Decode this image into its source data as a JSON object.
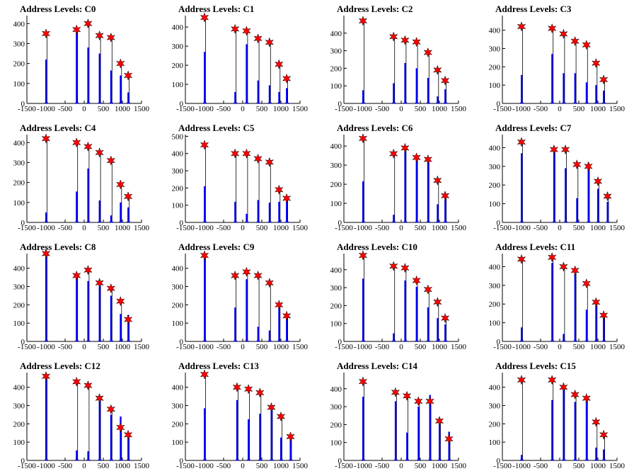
{
  "colors": {
    "bar": "#0000ee",
    "marker": "#ff0000",
    "marker_edge": "#000000",
    "axis": "#000000"
  },
  "chart_data": [
    {
      "type": "bar",
      "title": "Address Levels: C0",
      "xlim": [
        -1500,
        1500
      ],
      "ylim": [
        0,
        440
      ],
      "yticks": [
        0,
        100,
        200,
        300,
        400
      ],
      "xticks": [
        -1500,
        -1000,
        -500,
        0,
        500,
        1000,
        1500
      ],
      "xtick_labels": [
        "-1500",
        "-1000",
        "-500",
        "0",
        "500",
        "1000",
        "1500"
      ],
      "x": [
        -1000,
        -200,
        100,
        400,
        700,
        950,
        1150
      ],
      "values": [
        350,
        370,
        400,
        340,
        330,
        200,
        140
      ],
      "peaks": [
        [
          -1000,
          220
        ],
        [
          -200,
          370
        ],
        [
          100,
          280
        ],
        [
          400,
          250
        ],
        [
          700,
          165
        ],
        [
          950,
          140
        ],
        [
          1150,
          55
        ]
      ]
    },
    {
      "type": "bar",
      "title": "Address Levels: C1",
      "xlim": [
        -1500,
        1500
      ],
      "ylim": [
        0,
        460
      ],
      "yticks": [
        0,
        100,
        200,
        300,
        400
      ],
      "xticks": [
        -1500,
        -1000,
        -500,
        0,
        500,
        1000,
        1500
      ],
      "xtick_labels": [
        "-1500",
        "-1000",
        "-500",
        "0",
        "500",
        "1000",
        "1500"
      ],
      "x": [
        -1000,
        -200,
        100,
        400,
        700,
        950,
        1150
      ],
      "values": [
        450,
        390,
        380,
        340,
        320,
        205,
        130
      ],
      "peaks": [
        [
          -1000,
          270
        ],
        [
          -200,
          60
        ],
        [
          100,
          310
        ],
        [
          400,
          120
        ],
        [
          700,
          95
        ],
        [
          950,
          60
        ],
        [
          1150,
          80
        ]
      ]
    },
    {
      "type": "bar",
      "title": "Address Levels: C2",
      "xlim": [
        -1500,
        1500
      ],
      "ylim": [
        0,
        500
      ],
      "yticks": [
        0,
        100,
        200,
        300,
        400
      ],
      "xticks": [
        -1500,
        -1000,
        -500,
        0,
        500,
        1000,
        1500
      ],
      "xtick_labels": [
        "-1500",
        "-1000",
        "-500",
        "0",
        "500",
        "1000",
        "1500"
      ],
      "x": [
        -1000,
        -200,
        100,
        400,
        700,
        950,
        1150
      ],
      "values": [
        470,
        380,
        360,
        350,
        290,
        190,
        130
      ],
      "peaks": [
        [
          -1000,
          75
        ],
        [
          -200,
          115
        ],
        [
          100,
          230
        ],
        [
          400,
          200
        ],
        [
          700,
          145
        ],
        [
          950,
          40
        ],
        [
          1150,
          80
        ]
      ]
    },
    {
      "type": "bar",
      "title": "Address Levels: C3",
      "xlim": [
        -1500,
        1500
      ],
      "ylim": [
        0,
        480
      ],
      "yticks": [
        0,
        100,
        200,
        300,
        400
      ],
      "xticks": [
        -1500,
        -1000,
        -500,
        0,
        500,
        1000,
        1500
      ],
      "xtick_labels": [
        "-1500",
        "-1000",
        "-500",
        "0",
        "500",
        "1000",
        "1500"
      ],
      "x": [
        -1000,
        -200,
        100,
        400,
        700,
        950,
        1150
      ],
      "values": [
        420,
        410,
        380,
        340,
        320,
        220,
        130
      ],
      "peaks": [
        [
          -1000,
          155
        ],
        [
          -200,
          270
        ],
        [
          100,
          165
        ],
        [
          400,
          165
        ],
        [
          700,
          115
        ],
        [
          950,
          100
        ],
        [
          1150,
          70
        ]
      ]
    },
    {
      "type": "bar",
      "title": "Address Levels: C4",
      "xlim": [
        -1500,
        1500
      ],
      "ylim": [
        0,
        440
      ],
      "yticks": [
        0,
        100,
        200,
        300,
        400
      ],
      "xticks": [
        -1500,
        -1000,
        -500,
        0,
        500,
        1000,
        1500
      ],
      "xtick_labels": [
        "-1500",
        "-1000",
        "-500",
        "0",
        "500",
        "1000",
        "1500"
      ],
      "x": [
        -1000,
        -200,
        100,
        400,
        700,
        950,
        1150
      ],
      "values": [
        420,
        400,
        380,
        350,
        310,
        190,
        130
      ],
      "peaks": [
        [
          -1000,
          50
        ],
        [
          -200,
          155
        ],
        [
          100,
          270
        ],
        [
          400,
          110
        ],
        [
          700,
          35
        ],
        [
          950,
          100
        ],
        [
          1150,
          75
        ]
      ]
    },
    {
      "type": "bar",
      "title": "Address Levels: C5",
      "xlim": [
        -1500,
        1500
      ],
      "ylim": [
        0,
        510
      ],
      "yticks": [
        0,
        100,
        200,
        300,
        400,
        500
      ],
      "xticks": [
        -1500,
        -1000,
        -500,
        0,
        500,
        1000,
        1500
      ],
      "xtick_labels": [
        "-1500",
        "-1000",
        "-500",
        "0",
        "500",
        "1000",
        "1500"
      ],
      "x": [
        -1000,
        -200,
        100,
        400,
        700,
        950,
        1150
      ],
      "values": [
        450,
        400,
        400,
        370,
        350,
        190,
        140
      ],
      "peaks": [
        [
          -1000,
          210
        ],
        [
          -200,
          120
        ],
        [
          100,
          50
        ],
        [
          400,
          130
        ],
        [
          700,
          115
        ],
        [
          950,
          120
        ],
        [
          1150,
          150
        ]
      ]
    },
    {
      "type": "bar",
      "title": "Address Levels: C6",
      "xlim": [
        -1500,
        1500
      ],
      "ylim": [
        0,
        460
      ],
      "yticks": [
        0,
        100,
        200,
        300,
        400
      ],
      "xticks": [
        -1500,
        -1000,
        -500,
        0,
        500,
        1000,
        1500
      ],
      "xtick_labels": [
        "-1500",
        "-1000",
        "-500",
        "0",
        "500",
        "1000",
        "1500"
      ],
      "x": [
        -1000,
        -200,
        100,
        400,
        700,
        950,
        1150
      ],
      "values": [
        440,
        360,
        390,
        340,
        330,
        220,
        140
      ],
      "peaks": [
        [
          -1000,
          215
        ],
        [
          -200,
          40
        ],
        [
          100,
          370
        ],
        [
          400,
          330
        ],
        [
          700,
          325
        ],
        [
          950,
          95
        ],
        [
          1150,
          120
        ]
      ]
    },
    {
      "type": "bar",
      "title": "Address Levels: C7",
      "xlim": [
        -1500,
        1500
      ],
      "ylim": [
        0,
        470
      ],
      "yticks": [
        0,
        100,
        200,
        300,
        400
      ],
      "xticks": [
        -1500,
        -1000,
        -500,
        0,
        500,
        1000,
        1500
      ],
      "xtick_labels": [
        "-1500",
        "-1000",
        "-500",
        "0",
        "500",
        "1000",
        "1500"
      ],
      "x": [
        -1000,
        -150,
        150,
        450,
        750,
        1000,
        1250
      ],
      "values": [
        430,
        390,
        390,
        310,
        300,
        220,
        140
      ],
      "peaks": [
        [
          -1000,
          370
        ],
        [
          -150,
          380
        ],
        [
          150,
          290
        ],
        [
          450,
          130
        ],
        [
          750,
          320
        ],
        [
          1000,
          180
        ],
        [
          1250,
          110
        ]
      ]
    },
    {
      "type": "bar",
      "title": "Address Levels: C8",
      "xlim": [
        -1500,
        1500
      ],
      "ylim": [
        0,
        480
      ],
      "yticks": [
        0,
        100,
        200,
        300,
        400
      ],
      "xticks": [
        -1500,
        -1000,
        -500,
        0,
        500,
        1000,
        1500
      ],
      "xtick_labels": [
        "-1500",
        "-1000",
        "-500",
        "0",
        "500",
        "1000",
        "1500"
      ],
      "x": [
        -1000,
        -200,
        100,
        400,
        700,
        950,
        1150
      ],
      "values": [
        480,
        360,
        390,
        320,
        290,
        220,
        120
      ],
      "peaks": [
        [
          -1000,
          470
        ],
        [
          -200,
          360
        ],
        [
          100,
          330
        ],
        [
          400,
          300
        ],
        [
          700,
          250
        ],
        [
          950,
          150
        ],
        [
          1150,
          145
        ]
      ]
    },
    {
      "type": "bar",
      "title": "Address Levels: C9",
      "xlim": [
        -1500,
        1500
      ],
      "ylim": [
        0,
        480
      ],
      "yticks": [
        0,
        100,
        200,
        300,
        400
      ],
      "xticks": [
        -1500,
        -1000,
        -500,
        0,
        500,
        1000,
        1500
      ],
      "xtick_labels": [
        "-1500",
        "-1000",
        "-500",
        "0",
        "500",
        "1000",
        "1500"
      ],
      "x": [
        -1000,
        -200,
        100,
        400,
        700,
        950,
        1150
      ],
      "values": [
        470,
        360,
        380,
        360,
        320,
        200,
        140
      ],
      "peaks": [
        [
          -1000,
          470
        ],
        [
          -200,
          185
        ],
        [
          100,
          340
        ],
        [
          400,
          80
        ],
        [
          700,
          60
        ],
        [
          950,
          190
        ],
        [
          1150,
          130
        ]
      ]
    },
    {
      "type": "bar",
      "title": "Address Levels: C10",
      "xlim": [
        -1500,
        1500
      ],
      "ylim": [
        0,
        490
      ],
      "yticks": [
        0,
        100,
        200,
        300,
        400
      ],
      "xticks": [
        -1500,
        -1000,
        -500,
        0,
        500,
        1000,
        1500
      ],
      "xtick_labels": [
        "-1500",
        "-1000",
        "-500",
        "0",
        "500",
        "1000",
        "1500"
      ],
      "x": [
        -1000,
        -200,
        100,
        400,
        700,
        950,
        1150
      ],
      "values": [
        480,
        420,
        410,
        340,
        290,
        220,
        130
      ],
      "peaks": [
        [
          -1000,
          350
        ],
        [
          -200,
          45
        ],
        [
          100,
          340
        ],
        [
          400,
          305
        ],
        [
          700,
          190
        ],
        [
          950,
          130
        ],
        [
          1150,
          95
        ]
      ]
    },
    {
      "type": "bar",
      "title": "Address Levels: C11",
      "xlim": [
        -1500,
        1500
      ],
      "ylim": [
        0,
        470
      ],
      "yticks": [
        0,
        100,
        200,
        300,
        400
      ],
      "xticks": [
        -1500,
        -1000,
        -500,
        0,
        500,
        1000,
        1500
      ],
      "xtick_labels": [
        "-1500",
        "-1000",
        "-500",
        "0",
        "500",
        "1000",
        "1500"
      ],
      "x": [
        -1000,
        -200,
        100,
        400,
        700,
        950,
        1150
      ],
      "values": [
        440,
        450,
        400,
        380,
        310,
        210,
        140
      ],
      "peaks": [
        [
          -1000,
          75
        ],
        [
          -200,
          420
        ],
        [
          100,
          40
        ],
        [
          400,
          360
        ],
        [
          700,
          170
        ],
        [
          950,
          190
        ],
        [
          1150,
          130
        ]
      ]
    },
    {
      "type": "bar",
      "title": "Address Levels: C12",
      "xlim": [
        -1500,
        1500
      ],
      "ylim": [
        0,
        480
      ],
      "yticks": [
        0,
        100,
        200,
        300,
        400
      ],
      "xticks": [
        -1500,
        -1000,
        -500,
        0,
        500,
        1000,
        1500
      ],
      "xtick_labels": [
        "-1500",
        "-1000",
        "-500",
        "0",
        "500",
        "1000",
        "1500"
      ],
      "x": [
        -1000,
        -200,
        100,
        400,
        700,
        950,
        1150
      ],
      "values": [
        460,
        430,
        410,
        340,
        280,
        180,
        140
      ],
      "peaks": [
        [
          -1000,
          460
        ],
        [
          -200,
          55
        ],
        [
          100,
          50
        ],
        [
          400,
          350
        ],
        [
          700,
          250
        ],
        [
          950,
          240
        ],
        [
          1150,
          140
        ]
      ]
    },
    {
      "type": "bar",
      "title": "Address Levels: C13",
      "xlim": [
        -1500,
        1500
      ],
      "ylim": [
        0,
        480
      ],
      "yticks": [
        0,
        100,
        200,
        300,
        400
      ],
      "xticks": [
        -1500,
        -1000,
        -500,
        0,
        500,
        1000,
        1500
      ],
      "xtick_labels": [
        "-1500",
        "-1000",
        "-500",
        "0",
        "500",
        "1000",
        "1500"
      ],
      "x": [
        -1000,
        -150,
        150,
        450,
        750,
        1000,
        1250
      ],
      "values": [
        470,
        400,
        390,
        370,
        290,
        240,
        130
      ],
      "peaks": [
        [
          -1000,
          285
        ],
        [
          -150,
          330
        ],
        [
          150,
          225
        ],
        [
          450,
          255
        ],
        [
          750,
          295
        ],
        [
          1000,
          125
        ],
        [
          1250,
          130
        ]
      ]
    },
    {
      "type": "bar",
      "title": "Address Levels: C14",
      "xlim": [
        -1500,
        1500
      ],
      "ylim": [
        0,
        490
      ],
      "yticks": [
        0,
        100,
        200,
        300,
        400
      ],
      "xticks": [
        -1500,
        -1000,
        -500,
        0,
        500,
        1000,
        1500
      ],
      "xtick_labels": [
        "-1500",
        "-1000",
        "-500",
        "0",
        "500",
        "1000",
        "1500"
      ],
      "x": [
        -1000,
        -150,
        150,
        450,
        750,
        1000,
        1250
      ],
      "values": [
        440,
        380,
        360,
        330,
        330,
        220,
        120
      ],
      "peaks": [
        [
          -1000,
          355
        ],
        [
          -150,
          330
        ],
        [
          150,
          155
        ],
        [
          450,
          300
        ],
        [
          750,
          365
        ],
        [
          1000,
          200
        ],
        [
          1250,
          160
        ]
      ]
    },
    {
      "type": "bar",
      "title": "Address Levels: C15",
      "xlim": [
        -1500,
        1500
      ],
      "ylim": [
        0,
        480
      ],
      "yticks": [
        0,
        100,
        200,
        300,
        400
      ],
      "xticks": [
        -1500,
        -1000,
        -500,
        0,
        500,
        1000,
        1500
      ],
      "xtick_labels": [
        "-1500",
        "-1000",
        "-500",
        "0",
        "500",
        "1000",
        "1500"
      ],
      "x": [
        -1000,
        -200,
        100,
        400,
        700,
        950,
        1150
      ],
      "values": [
        440,
        440,
        400,
        360,
        340,
        210,
        140
      ],
      "peaks": [
        [
          -1000,
          30
        ],
        [
          -200,
          330
        ],
        [
          100,
          385
        ],
        [
          400,
          320
        ],
        [
          700,
          325
        ],
        [
          950,
          70
        ],
        [
          1150,
          60
        ]
      ]
    }
  ]
}
